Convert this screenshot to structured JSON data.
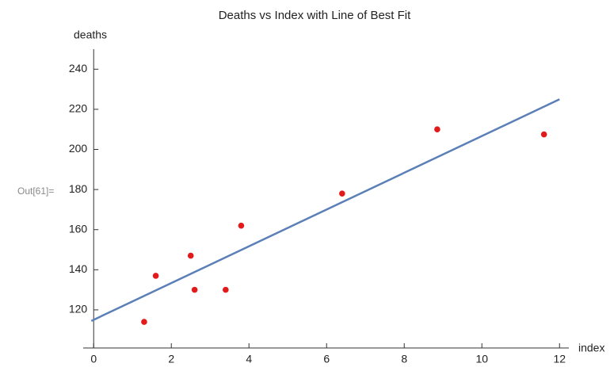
{
  "prompt_label": "Out[61]=",
  "chart_data": {
    "type": "scatter",
    "title": "Deaths vs Index with Line of Best Fit",
    "x_label": "index",
    "y_label": "deaths",
    "xlim": [
      -0.27,
      12.24
    ],
    "ylim": [
      101,
      250
    ],
    "xticks": [
      0,
      2,
      4,
      6,
      8,
      10,
      12
    ],
    "yticks": [
      120,
      140,
      160,
      180,
      200,
      220,
      240
    ],
    "x": [
      1.3,
      1.6,
      2.5,
      2.6,
      3.4,
      3.8,
      6.4,
      8.85,
      11.6
    ],
    "values": [
      114,
      137,
      147,
      130,
      130,
      162,
      178,
      210,
      207.5
    ],
    "color": "#e31a1c",
    "fit": {
      "x": [
        -0.06,
        12
      ],
      "values": [
        114.5,
        225
      ],
      "color": "#5b7fb7"
    }
  }
}
